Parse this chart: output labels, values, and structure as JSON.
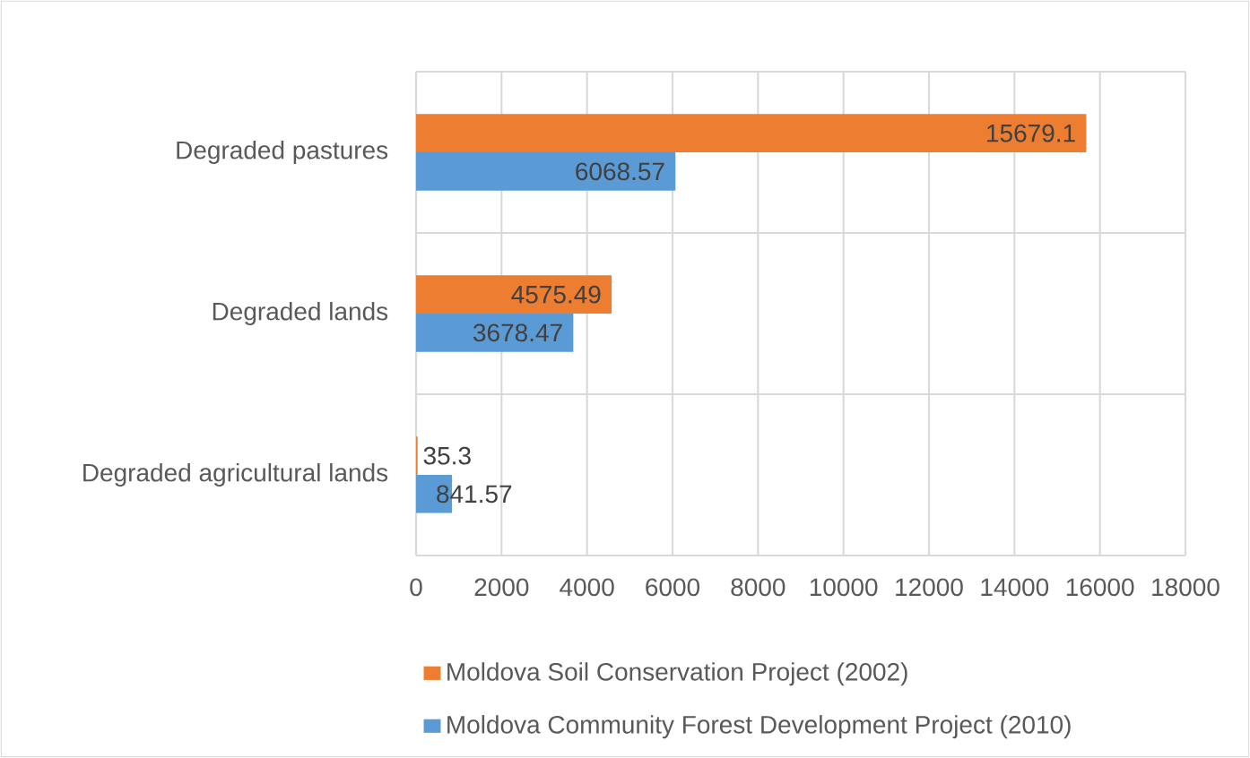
{
  "chart_data": {
    "type": "bar",
    "orientation": "horizontal",
    "categories": [
      "Degraded pastures",
      "Degraded lands",
      "Degraded agricultural lands"
    ],
    "series": [
      {
        "name": "Moldova Soil Conservation Project (2002)",
        "color": "#ed7d31",
        "values": [
          15679.1,
          4575.49,
          35.3
        ]
      },
      {
        "name": "Moldova Community Forest Development Project (2010)",
        "color": "#5b9bd5",
        "values": [
          6068.57,
          3678.47,
          841.57
        ]
      }
    ],
    "xlim": [
      0,
      18000
    ],
    "xticks": [
      0,
      2000,
      4000,
      6000,
      8000,
      10000,
      12000,
      14000,
      16000,
      18000
    ],
    "grid": true,
    "legend": "bottom",
    "data_labels": true
  }
}
